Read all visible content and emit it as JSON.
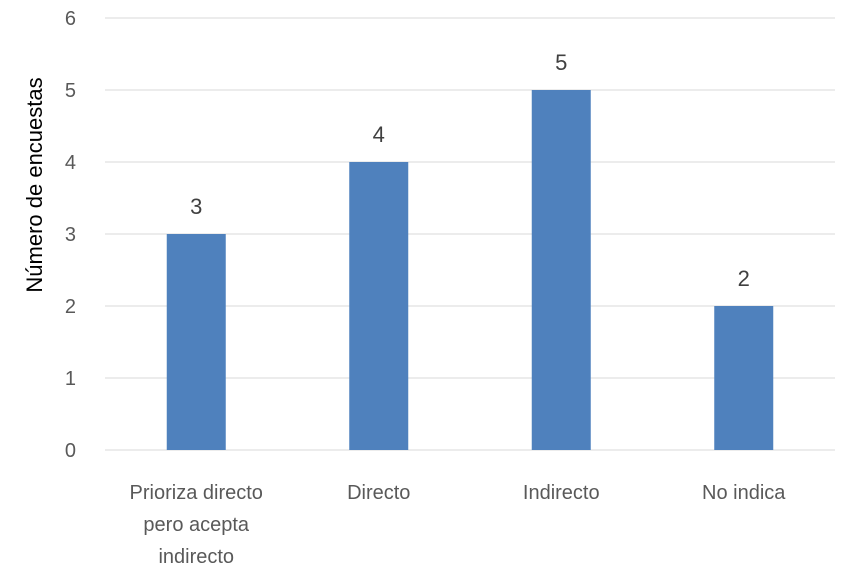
{
  "chart_data": {
    "type": "bar",
    "title": "",
    "xlabel": "",
    "ylabel": "Número de encuestas",
    "categories": [
      [
        "Prioriza directo",
        "pero acepta",
        "indirecto"
      ],
      [
        "Directo"
      ],
      [
        "Indirecto"
      ],
      [
        "No indica"
      ]
    ],
    "values": [
      3,
      4,
      5,
      2
    ],
    "data_labels": [
      "3",
      "4",
      "5",
      "2"
    ],
    "ylim": [
      0,
      6
    ],
    "yticks": [
      "0",
      "1",
      "2",
      "3",
      "4",
      "5",
      "6"
    ],
    "grid": true,
    "legend": "none",
    "colors": {
      "bar": "#4f81bd",
      "grid": "#d9d9d9",
      "axis_text": "#595959"
    }
  }
}
